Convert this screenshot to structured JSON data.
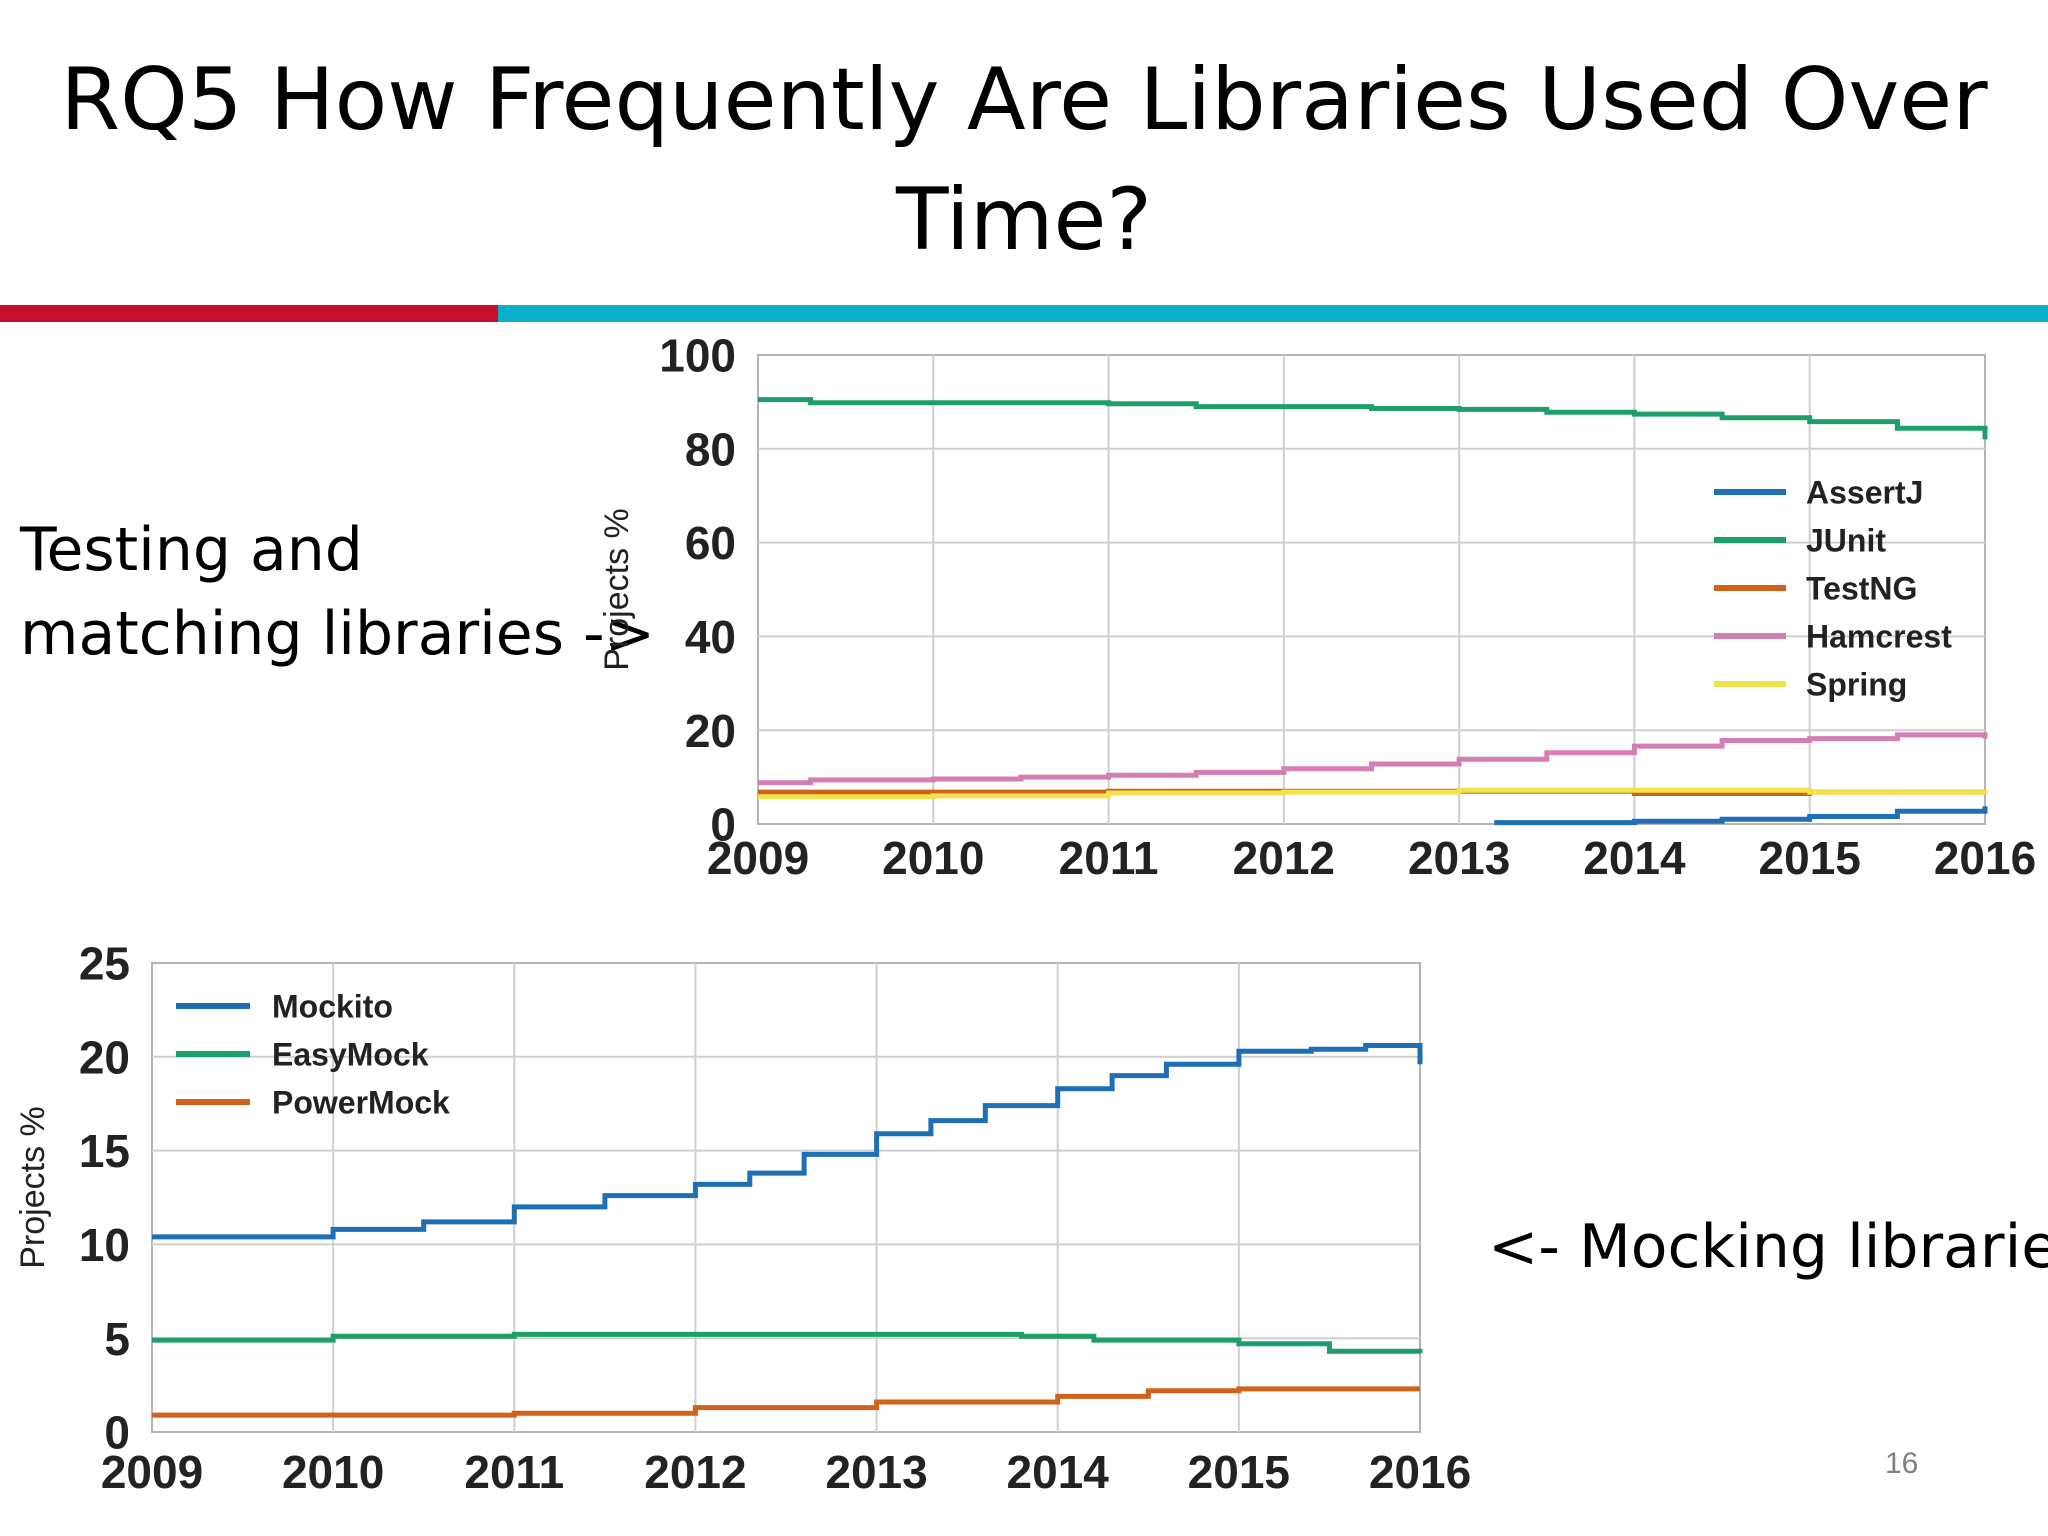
{
  "title": {
    "line1": "RQ5 How Frequently Are Libraries Used Over",
    "line2": "Time?"
  },
  "captions": {
    "testing": {
      "line1": "Testing and",
      "line2": "matching libraries ->"
    },
    "mocking": "<- Mocking libraries"
  },
  "page_number": "16",
  "colors": {
    "accent_red": "#c8102e",
    "accent_cyan": "#0ab0ca"
  },
  "chart_data": [
    {
      "type": "line",
      "ylabel": "Projects %",
      "xlim": [
        2009,
        2016
      ],
      "ylim": [
        0,
        100
      ],
      "x_ticks": [
        "2009",
        "2010",
        "2011",
        "2012",
        "2013",
        "2014",
        "2015",
        "2016"
      ],
      "y_ticks": [
        "0",
        "20",
        "40",
        "60",
        "80",
        "100"
      ],
      "grid": true,
      "legend": "right",
      "series": [
        {
          "name": "AssertJ",
          "color": "#1f6fb4",
          "points": [
            [
              2013.2,
              0.3
            ],
            [
              2014.0,
              0.6
            ],
            [
              2014.5,
              1.0
            ],
            [
              2015.0,
              1.6
            ],
            [
              2015.5,
              2.7
            ],
            [
              2016.0,
              3.8
            ]
          ]
        },
        {
          "name": "JUnit",
          "color": "#1e9e6b",
          "points": [
            [
              2009.0,
              90.5
            ],
            [
              2009.3,
              89.8
            ],
            [
              2010.0,
              89.8
            ],
            [
              2011.0,
              89.6
            ],
            [
              2011.5,
              89.0
            ],
            [
              2012.0,
              89.0
            ],
            [
              2012.5,
              88.6
            ],
            [
              2013.0,
              88.4
            ],
            [
              2013.5,
              87.8
            ],
            [
              2014.0,
              87.4
            ],
            [
              2014.5,
              86.6
            ],
            [
              2015.0,
              85.8
            ],
            [
              2015.5,
              84.4
            ],
            [
              2016.0,
              82.0
            ]
          ]
        },
        {
          "name": "TestNG",
          "color": "#d0621a",
          "points": [
            [
              2009.0,
              6.8
            ],
            [
              2010.0,
              6.8
            ],
            [
              2011.0,
              7.0
            ],
            [
              2012.0,
              7.0
            ],
            [
              2013.0,
              7.0
            ],
            [
              2014.0,
              6.5
            ],
            [
              2015.0,
              6.8
            ],
            [
              2016.0,
              6.5
            ]
          ]
        },
        {
          "name": "Hamcrest",
          "color": "#d47fb3",
          "points": [
            [
              2009.0,
              8.8
            ],
            [
              2009.3,
              9.4
            ],
            [
              2010.0,
              9.6
            ],
            [
              2010.5,
              10.0
            ],
            [
              2011.0,
              10.4
            ],
            [
              2011.5,
              11.0
            ],
            [
              2012.0,
              11.8
            ],
            [
              2012.5,
              12.8
            ],
            [
              2013.0,
              13.8
            ],
            [
              2013.5,
              15.2
            ],
            [
              2014.0,
              16.6
            ],
            [
              2014.5,
              17.8
            ],
            [
              2015.0,
              18.2
            ],
            [
              2015.5,
              19.0
            ],
            [
              2016.0,
              18.2
            ]
          ]
        },
        {
          "name": "Spring",
          "color": "#f2e34c",
          "points": [
            [
              2009.0,
              5.8
            ],
            [
              2010.0,
              6.0
            ],
            [
              2011.0,
              6.6
            ],
            [
              2012.0,
              6.8
            ],
            [
              2013.0,
              7.2
            ],
            [
              2014.0,
              7.2
            ],
            [
              2015.0,
              6.8
            ],
            [
              2016.0,
              6.4
            ]
          ]
        }
      ]
    },
    {
      "type": "line",
      "ylabel": "Projects %",
      "xlim": [
        2009,
        2016
      ],
      "ylim": [
        0,
        25
      ],
      "x_ticks": [
        "2009",
        "2010",
        "2011",
        "2012",
        "2013",
        "2014",
        "2015",
        "2016"
      ],
      "y_ticks": [
        "0",
        "5",
        "10",
        "15",
        "20",
        "25"
      ],
      "grid": true,
      "legend": "top-left",
      "series": [
        {
          "name": "Mockito",
          "color": "#1f6fb4",
          "points": [
            [
              2009.0,
              10.4
            ],
            [
              2009.5,
              10.4
            ],
            [
              2010.0,
              10.8
            ],
            [
              2010.5,
              11.2
            ],
            [
              2011.0,
              12.0
            ],
            [
              2011.5,
              12.6
            ],
            [
              2012.0,
              13.2
            ],
            [
              2012.3,
              13.8
            ],
            [
              2012.6,
              14.8
            ],
            [
              2013.0,
              15.9
            ],
            [
              2013.3,
              16.6
            ],
            [
              2013.6,
              17.4
            ],
            [
              2014.0,
              18.3
            ],
            [
              2014.3,
              19.0
            ],
            [
              2014.6,
              19.6
            ],
            [
              2015.0,
              20.3
            ],
            [
              2015.4,
              20.4
            ],
            [
              2015.7,
              20.6
            ],
            [
              2016.0,
              19.6
            ]
          ]
        },
        {
          "name": "EasyMock",
          "color": "#1e9e6b",
          "points": [
            [
              2009.0,
              4.9
            ],
            [
              2010.0,
              5.1
            ],
            [
              2011.0,
              5.2
            ],
            [
              2012.0,
              5.2
            ],
            [
              2013.0,
              5.2
            ],
            [
              2013.8,
              5.1
            ],
            [
              2014.2,
              4.9
            ],
            [
              2015.0,
              4.7
            ],
            [
              2015.5,
              4.3
            ],
            [
              2016.0,
              4.2
            ]
          ]
        },
        {
          "name": "PowerMock",
          "color": "#d0621a",
          "points": [
            [
              2009.0,
              0.9
            ],
            [
              2010.0,
              0.9
            ],
            [
              2011.0,
              1.0
            ],
            [
              2012.0,
              1.3
            ],
            [
              2013.0,
              1.6
            ],
            [
              2014.0,
              1.9
            ],
            [
              2014.5,
              2.2
            ],
            [
              2015.0,
              2.3
            ],
            [
              2016.0,
              2.3
            ]
          ]
        }
      ]
    }
  ]
}
